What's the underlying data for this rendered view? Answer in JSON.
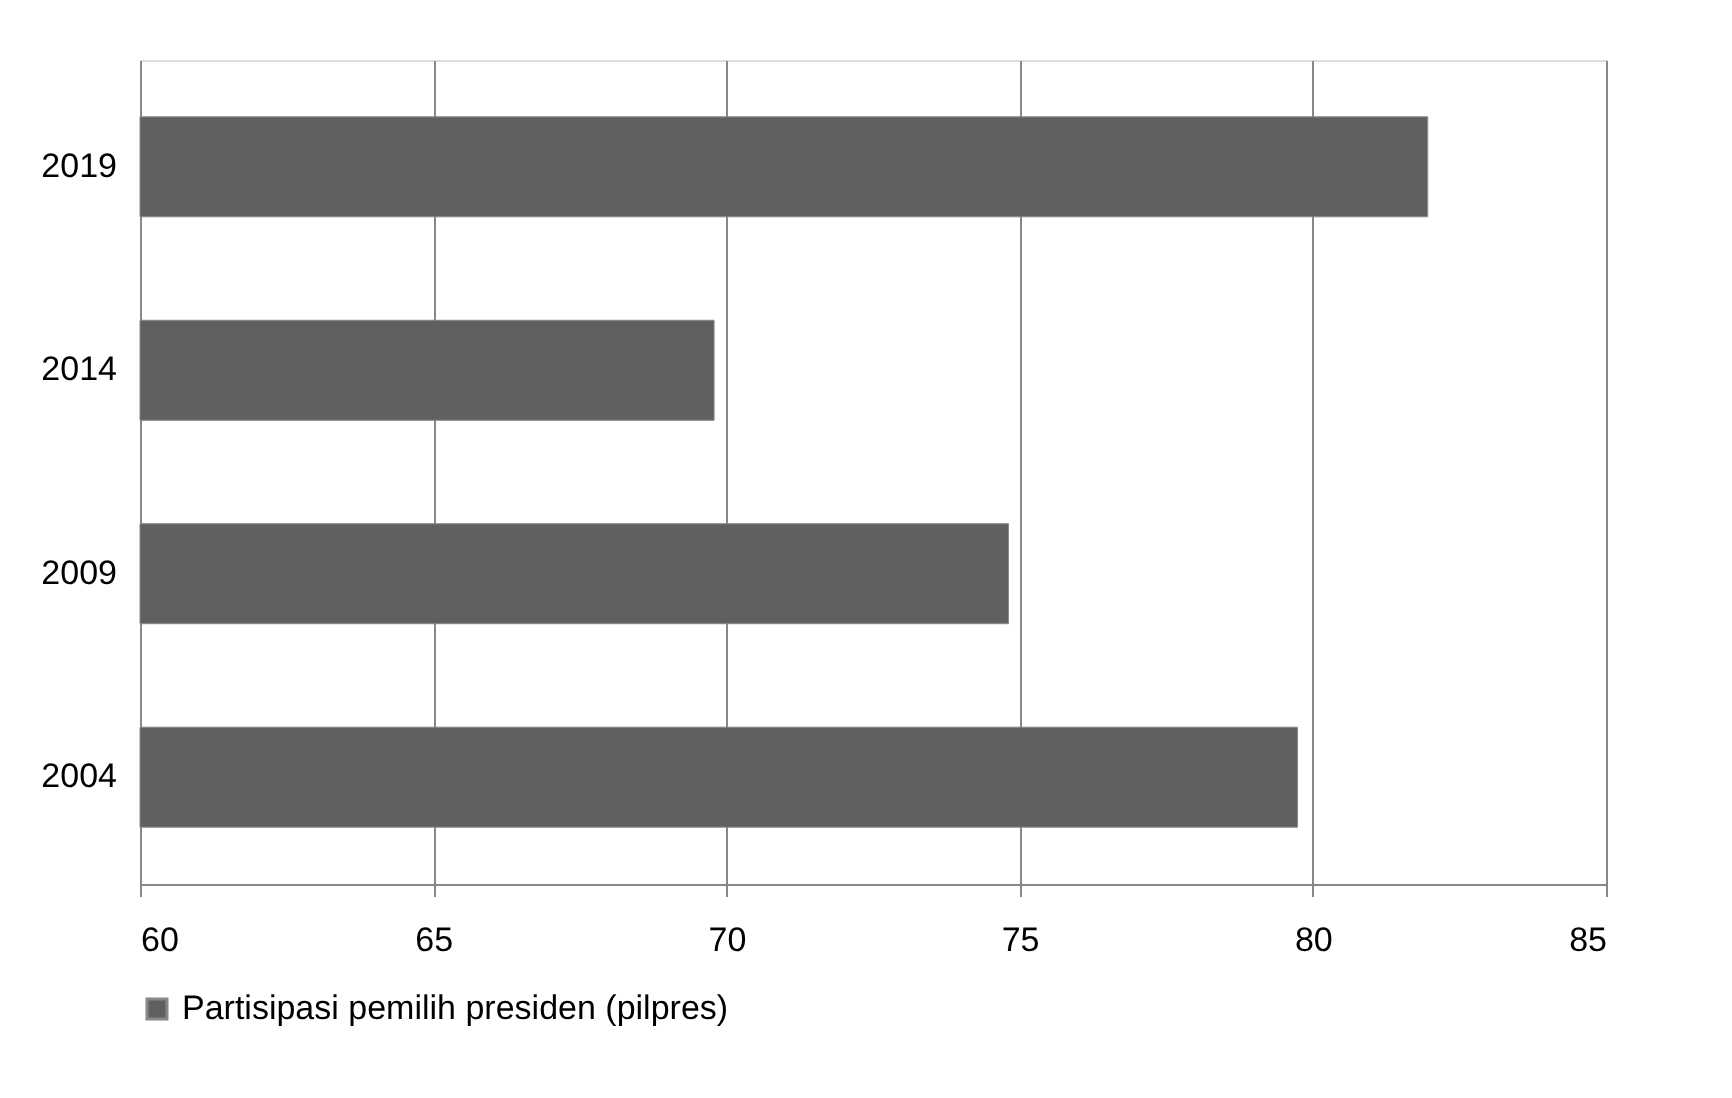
{
  "chart_data": {
    "type": "bar",
    "orientation": "horizontal",
    "categories": [
      "2019",
      "2014",
      "2009",
      "2004"
    ],
    "series": [
      {
        "name": "Partisipasi pemilih presiden (pilpres)",
        "color": "#606060",
        "values": [
          81.96,
          69.79,
          74.81,
          79.74
        ]
      }
    ],
    "xlim": [
      60,
      85
    ],
    "xticks": [
      60,
      65,
      70,
      75,
      80,
      85
    ],
    "grid": "x",
    "legend": "bottom"
  }
}
